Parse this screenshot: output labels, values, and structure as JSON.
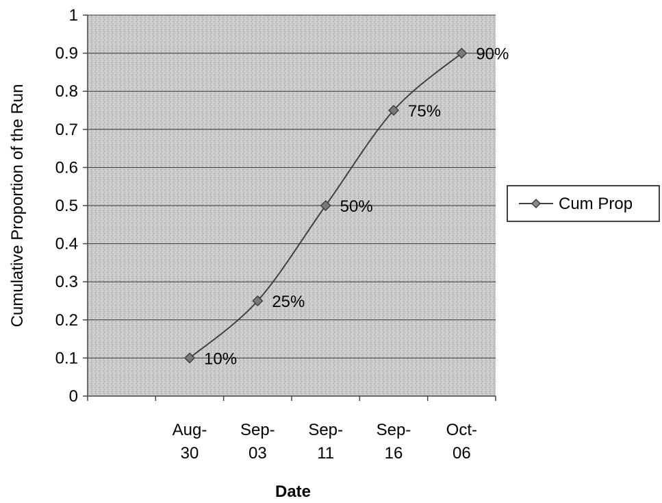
{
  "chart_data": {
    "type": "line",
    "xlabel": "Date",
    "ylabel": "Cumulative Proportion of the Run",
    "categories": [
      [
        "Aug-",
        "30"
      ],
      [
        "Sep-",
        "03"
      ],
      [
        "Sep-",
        "11"
      ],
      [
        "Sep-",
        "16"
      ],
      [
        "Oct-",
        "06"
      ]
    ],
    "ylim": [
      0,
      1
    ],
    "yticks": [
      "0",
      "0.1",
      "0.2",
      "0.3",
      "0.4",
      "0.5",
      "0.6",
      "0.7",
      "0.8",
      "0.9",
      "1"
    ],
    "grid": true,
    "legend_position": "right",
    "series": [
      {
        "name": "Cum Prop",
        "values": [
          0.1,
          0.25,
          0.5,
          0.75,
          0.9
        ],
        "data_labels": [
          "10%",
          "25%",
          "50%",
          "75%",
          "90%"
        ],
        "color": "#404040"
      }
    ],
    "plot_background": "#c8c8c8"
  }
}
